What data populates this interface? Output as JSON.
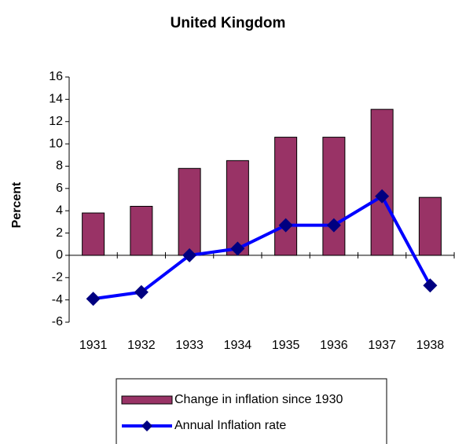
{
  "chart_data": {
    "type": "bar",
    "title": "United Kingdom",
    "y_label": "Percent",
    "categories": [
      "1931",
      "1932",
      "1933",
      "1934",
      "1935",
      "1936",
      "1937",
      "1938"
    ],
    "series": [
      {
        "name": "Change in inflation since 1930",
        "type": "bar",
        "color": "#993366",
        "values": [
          3.8,
          4.4,
          7.8,
          8.5,
          10.6,
          10.6,
          13.1,
          5.2
        ]
      },
      {
        "name": "Annual Inflation rate",
        "type": "line",
        "color": "#0000ff",
        "marker_color": "#000080",
        "values": [
          -3.9,
          -3.3,
          0,
          0.6,
          2.7,
          2.7,
          5.3,
          -2.7
        ]
      }
    ],
    "ylim": [
      -6,
      16
    ],
    "yticks": [
      -6,
      -4,
      -2,
      0,
      2,
      4,
      6,
      8,
      10,
      12,
      14,
      16
    ],
    "grid": false,
    "legend": "bottom"
  }
}
